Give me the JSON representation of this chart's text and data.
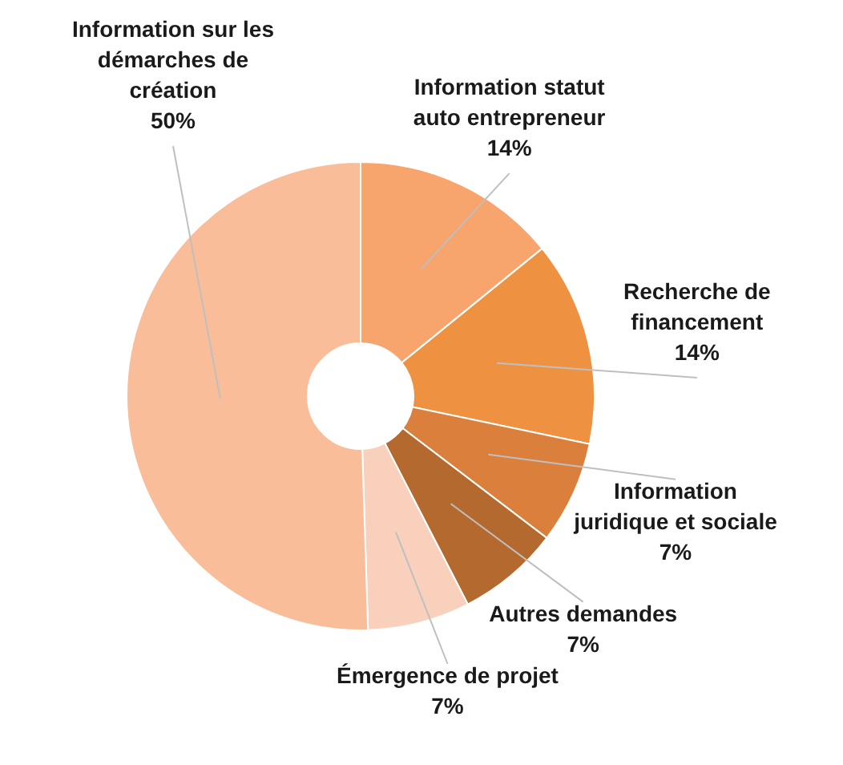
{
  "chart_data": {
    "type": "donut",
    "categories": [
      "Information statut auto entrepreneur",
      "Recherche de financement",
      "Information juridique et sociale",
      "Autres demandes",
      "Émergence de projet",
      "Information sur les démarches de création"
    ],
    "values": [
      14,
      14,
      7,
      7,
      7,
      50
    ],
    "value_labels": [
      "14%",
      "14%",
      "7%",
      "7%",
      "7%",
      "50%"
    ],
    "colors": [
      "#f7a46d",
      "#ee9242",
      "#db7f3c",
      "#b46a2e",
      "#f9d0bb",
      "#f9bd9a"
    ],
    "legend": false
  }
}
